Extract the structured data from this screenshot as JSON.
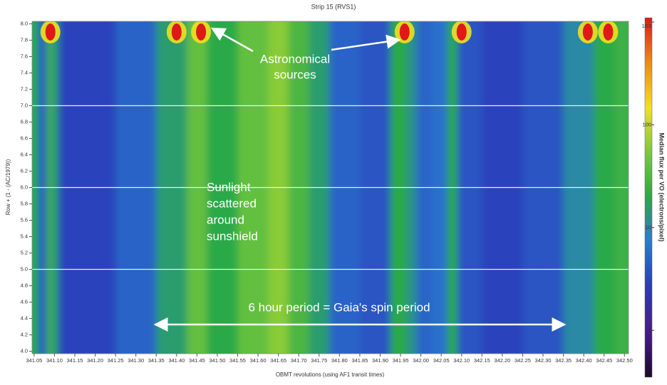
{
  "chart_data": {
    "type": "heatmap",
    "title": "Strip 15 (RVS1)",
    "x_label": "OBMT revolutions (using AF1 transit times)",
    "y_label": "Row + (1 - (AC/1979))",
    "colorbar_label": "Median flux per VO (electrons/pixel)",
    "x": [
      341.05,
      341.07,
      341.09,
      341.1,
      341.12,
      341.2,
      341.3,
      341.4,
      341.45,
      341.5,
      341.6,
      341.65,
      341.7,
      341.75,
      341.8,
      341.9,
      341.95,
      341.98,
      342.0,
      342.05,
      342.08,
      342.1,
      342.2,
      342.3,
      342.4,
      342.45,
      342.5
    ],
    "values": [
      20,
      4,
      25,
      15,
      3,
      3,
      5,
      15,
      40,
      20,
      40,
      60,
      30,
      15,
      5,
      4,
      20,
      12,
      5,
      6,
      20,
      4,
      3,
      4,
      10,
      20,
      25
    ],
    "sources": {
      "x": [
        341.09,
        341.4,
        341.46,
        341.96,
        342.1,
        342.41,
        342.46
      ],
      "y": [
        7.9,
        7.9,
        7.9,
        7.9,
        7.9,
        7.9,
        7.9
      ]
    },
    "row_boundaries": [
      5.0,
      6.0,
      7.0
    ],
    "xlim": [
      341.045,
      342.51
    ],
    "ylim": [
      3.97,
      8.03
    ],
    "clim": [
      0.35,
      1100
    ],
    "log_color_scale": true,
    "colorscale": [
      "#1b0a2a",
      "#4a1a8a",
      "#2a3ab8",
      "#2a7ad0",
      "#2aa84a",
      "#7cc83a",
      "#f0e020",
      "#f08a10",
      "#e01818"
    ],
    "xticks": [
      341.05,
      {
        "value": 341.1,
        "label": "341.10"
      },
      341.15,
      {
        "value": 341.2,
        "label": "341.20"
      },
      341.25,
      {
        "value": 341.3,
        "label": "341.30"
      },
      341.35,
      {
        "value": 341.4,
        "label": "341.40"
      },
      341.45,
      {
        "value": 341.5,
        "label": "341.50"
      },
      341.55,
      {
        "value": 341.6,
        "label": "341.60"
      },
      341.65,
      {
        "value": 341.7,
        "label": "341.70"
      },
      341.75,
      {
        "value": 341.8,
        "label": "341.80"
      },
      341.85,
      {
        "value": 341.9,
        "label": "341.90"
      },
      341.95,
      {
        "value": 342,
        "label": "342.00"
      },
      342.05,
      {
        "value": 342.1,
        "label": "342.10"
      },
      342.15,
      {
        "value": 342.2,
        "label": "342.20"
      },
      342.25,
      {
        "value": 342.3,
        "label": "342.30"
      },
      342.35,
      {
        "value": 342.4,
        "label": "342.40"
      },
      342.45,
      {
        "value": 342.5,
        "label": "342.50"
      }
    ],
    "yticks": [
      {
        "value": 4,
        "label": "4.0"
      },
      4.2,
      4.4,
      4.6,
      4.8,
      {
        "value": 5,
        "label": "5.0"
      },
      5.2,
      5.4,
      5.6,
      5.8,
      {
        "value": 6,
        "label": "6.0"
      },
      6.2,
      6.4,
      6.6,
      6.8,
      {
        "value": 7,
        "label": "7.0"
      },
      7.2,
      7.4,
      7.6,
      7.8,
      {
        "value": 8,
        "label": "8.0"
      }
    ],
    "cticks": [
      1,
      10,
      100,
      {
        "value": 1000,
        "label": "1E3"
      }
    ],
    "annotations": [
      {
        "lines": [
          "Astronomical",
          "sources"
        ]
      },
      {
        "lines": [
          "Sunlight",
          "scattered",
          "around",
          "sunshield"
        ]
      },
      {
        "lines": [
          "6 hour period = Gaia's spin period"
        ]
      }
    ]
  }
}
